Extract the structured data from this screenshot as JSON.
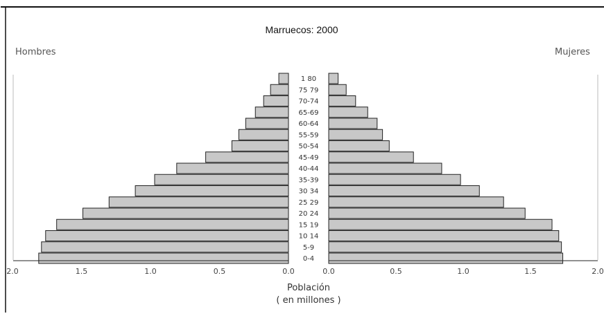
{
  "chart_data": {
    "type": "bar",
    "orientation": "horizontal",
    "layout": "population-pyramid",
    "title": "Marruecos: 2000",
    "left_label": "Hombres",
    "right_label": "Mujeres",
    "xlabel_line1": "Población",
    "xlabel_line2": "( en millones )",
    "xlim": [
      0,
      2.0
    ],
    "left_ticks": [
      "2.0",
      "1.5",
      "1.0",
      "0.5",
      "0.0"
    ],
    "right_ticks": [
      "0.0",
      "0.5",
      "1.0",
      "1.5",
      "2.0"
    ],
    "tick_values": [
      0,
      0.5,
      1.0,
      1.5,
      2.0
    ],
    "categories": [
      "80+",
      "75-79",
      "70-74",
      "65-69",
      "60-64",
      "55-59",
      "50-54",
      "45-49",
      "40-44",
      "35-39",
      "30-34",
      "25-29",
      "20-24",
      "15-19",
      "10-14",
      "5-9",
      "0-4"
    ],
    "category_labels": [
      "1 80",
      "75 79",
      "70-74",
      "65-69",
      "60-64",
      "55-59",
      "50-54",
      "45-49",
      "40-44",
      "35-39",
      "30 34",
      "25 29",
      "20 24",
      "15 19",
      "10 14",
      "5-9",
      "0-4"
    ],
    "series": [
      {
        "name": "Hombres",
        "values": [
          0.07,
          0.13,
          0.18,
          0.24,
          0.31,
          0.36,
          0.41,
          0.6,
          0.81,
          0.97,
          1.11,
          1.3,
          1.49,
          1.68,
          1.76,
          1.79,
          1.81
        ]
      },
      {
        "name": "Mujeres",
        "values": [
          0.07,
          0.13,
          0.2,
          0.29,
          0.36,
          0.4,
          0.45,
          0.63,
          0.84,
          0.98,
          1.12,
          1.3,
          1.46,
          1.66,
          1.71,
          1.73,
          1.74
        ]
      }
    ],
    "bar_color": "#c8c8c8",
    "edge_color": "#222222",
    "grid": false
  }
}
